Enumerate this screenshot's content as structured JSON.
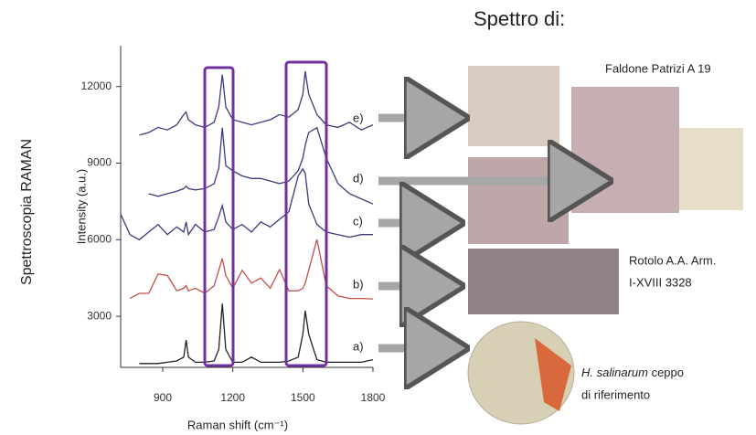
{
  "side_label": "Spettroscopia RAMAN",
  "heading": "Spettro di:",
  "captions": {
    "faldone": "Faldone Patrizi A 19",
    "rotolo": [
      "Rotolo A.A. Arm.",
      "I-XVIII 3328"
    ],
    "salinarum": {
      "species": "H. salinarum",
      "rest": " ceppo",
      "line2": "di riferimento"
    }
  },
  "chart_data": {
    "type": "line",
    "xlabel": "Raman shift (cm⁻¹)",
    "ylabel": "Intensity (a.u.)",
    "xlim": [
      720,
      1800
    ],
    "ylim": [
      1000,
      13600
    ],
    "xticks": [
      900,
      1200,
      1500,
      1800
    ],
    "yticks": [
      3000,
      6000,
      9000,
      12000
    ],
    "x": [
      720,
      760,
      800,
      840,
      880,
      920,
      960,
      990,
      1000,
      1010,
      1040,
      1080,
      1120,
      1140,
      1155,
      1170,
      1200,
      1240,
      1280,
      1320,
      1360,
      1400,
      1440,
      1480,
      1500,
      1510,
      1525,
      1560,
      1600,
      1650,
      1700,
      1750,
      1800
    ],
    "series": [
      {
        "name": "a)",
        "color": "#222222",
        "values": [
          null,
          null,
          1150,
          1150,
          1150,
          1200,
          1250,
          1400,
          2070,
          1400,
          1200,
          1200,
          1250,
          1700,
          3500,
          1700,
          1200,
          1200,
          1400,
          1200,
          1200,
          1200,
          1250,
          1400,
          2300,
          3220,
          2300,
          1300,
          1200,
          1200,
          1200,
          1200,
          1300
        ]
      },
      {
        "name": "b)",
        "color": "#c0504d",
        "values": [
          null,
          3700,
          3900,
          3900,
          4650,
          4600,
          4000,
          4100,
          4200,
          4000,
          4100,
          3900,
          4200,
          4800,
          5260,
          4600,
          4100,
          4800,
          4300,
          4500,
          4100,
          4830,
          4000,
          4000,
          4100,
          4300,
          4800,
          6010,
          4200,
          3800,
          3700,
          3700,
          3680
        ]
      },
      {
        "name": "c)",
        "color": "#3b3b7d",
        "values": [
          7000,
          6200,
          6000,
          6300,
          6600,
          6200,
          6500,
          6300,
          6700,
          6200,
          6600,
          6300,
          6400,
          6900,
          7340,
          6700,
          6400,
          6600,
          6300,
          6700,
          6500,
          6800,
          7100,
          8500,
          8770,
          8600,
          7400,
          6600,
          6300,
          6200,
          6100,
          6200,
          6200
        ]
      },
      {
        "name": "d)",
        "color": "#3b3b7d",
        "values": [
          null,
          null,
          null,
          7800,
          7700,
          7800,
          7900,
          8000,
          8100,
          8000,
          7950,
          8000,
          8200,
          8800,
          10390,
          8900,
          8700,
          8500,
          8400,
          8400,
          8300,
          8200,
          8300,
          8700,
          9200,
          9700,
          10200,
          10390,
          9200,
          8200,
          7800,
          7600,
          7400
        ]
      },
      {
        "name": "e)",
        "color": "#3b3b7d",
        "values": [
          null,
          null,
          10100,
          10200,
          10400,
          10300,
          10500,
          10900,
          11000,
          10700,
          10500,
          10400,
          10600,
          11200,
          12470,
          11200,
          10700,
          10600,
          10500,
          10600,
          10700,
          10900,
          10800,
          11100,
          11700,
          12600,
          11700,
          10900,
          10500,
          10400,
          10600,
          10300,
          10500
        ]
      }
    ]
  }
}
